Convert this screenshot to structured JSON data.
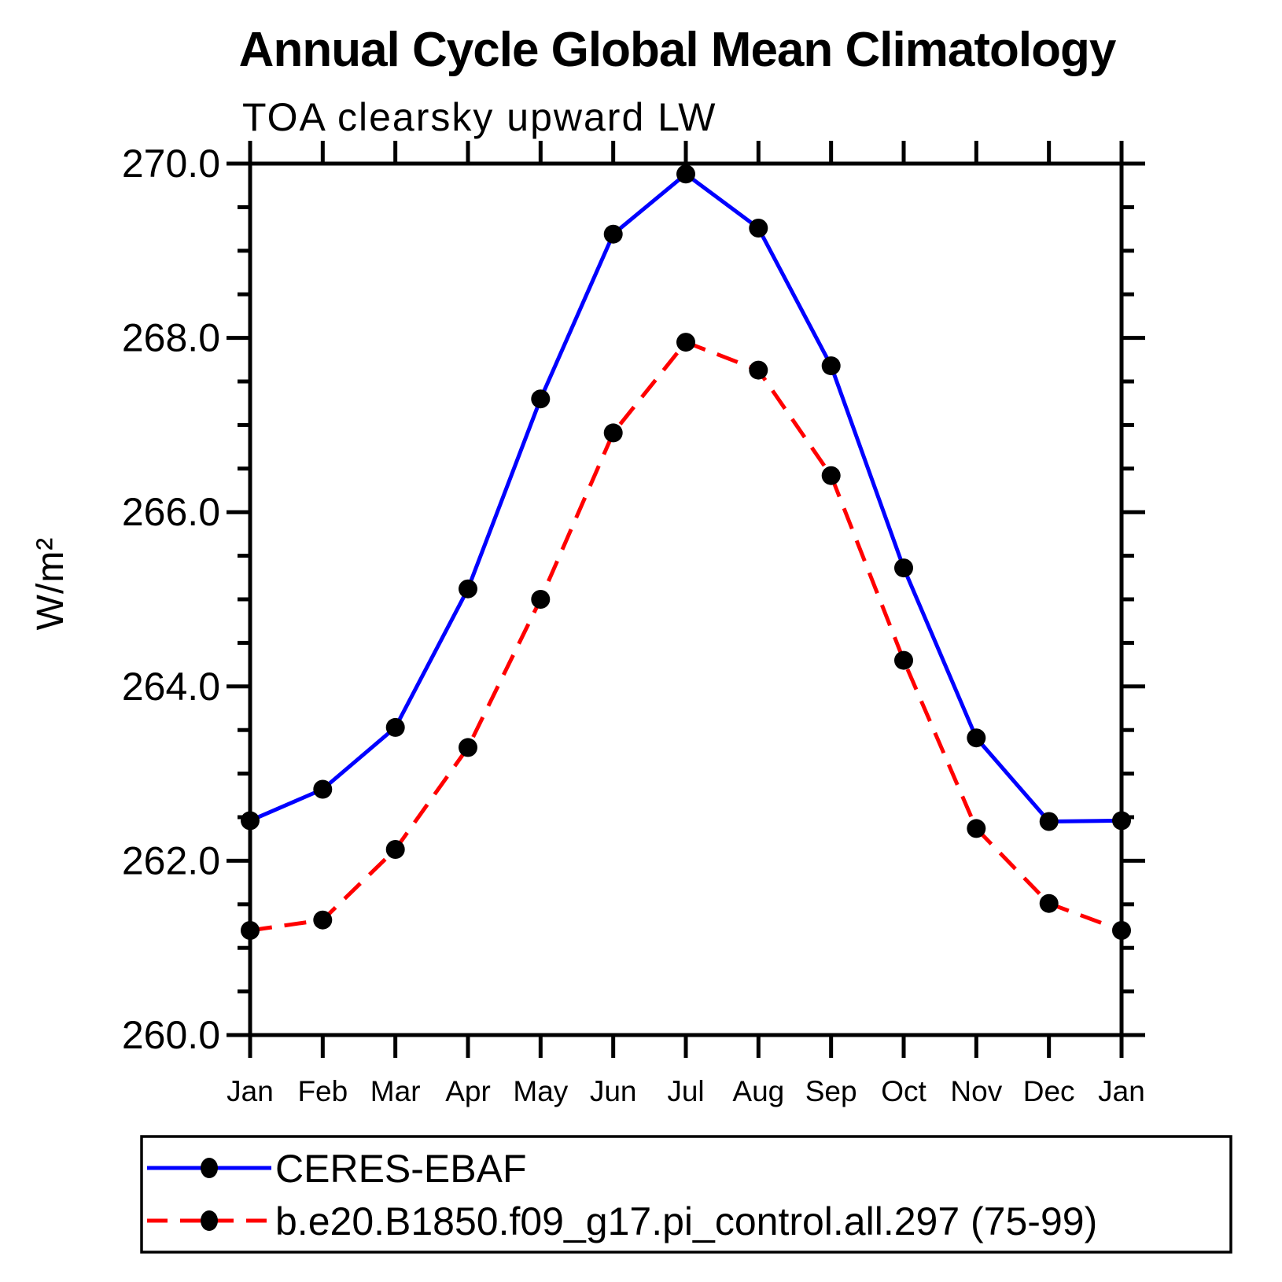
{
  "title": "Annual Cycle Global Mean Climatology",
  "subtitle": "TOA clearsky upward LW",
  "chart_data": {
    "type": "line",
    "title": "Annual Cycle Global Mean Climatology",
    "subtitle": "TOA clearsky upward LW",
    "xlabel": "",
    "ylabel": "W/m²",
    "ylim": [
      260.0,
      270.0
    ],
    "ytick_major_interval": 2.0,
    "ytick_minor_interval": 0.5,
    "yticks": [
      260.0,
      262.0,
      264.0,
      266.0,
      268.0,
      270.0
    ],
    "ytick_labels": [
      "260.0",
      "262.0",
      "264.0",
      "266.0",
      "268.0",
      "270.0"
    ],
    "categories": [
      "Jan",
      "Feb",
      "Mar",
      "Apr",
      "May",
      "Jun",
      "Jul",
      "Aug",
      "Sep",
      "Oct",
      "Nov",
      "Dec",
      "Jan"
    ],
    "grid": false,
    "legend_position": "bottom",
    "axis_color": "#000000",
    "marker_color": "#000000",
    "series": [
      {
        "name": "CERES-EBAF",
        "color": "#0000ff",
        "line_style": "solid",
        "marker": "filled-circle",
        "values": [
          262.46,
          262.82,
          263.53,
          265.12,
          267.3,
          269.19,
          269.88,
          269.26,
          267.68,
          265.36,
          263.41,
          262.45,
          262.46
        ]
      },
      {
        "name": "b.e20.B1850.f09_g17.pi_control.all.297 (75-99)",
        "color": "#ff0000",
        "line_style": "dashed",
        "marker": "filled-circle",
        "values": [
          261.2,
          261.32,
          262.13,
          263.3,
          265.0,
          266.91,
          267.95,
          267.63,
          266.42,
          264.3,
          262.37,
          261.51,
          261.2
        ]
      }
    ]
  }
}
